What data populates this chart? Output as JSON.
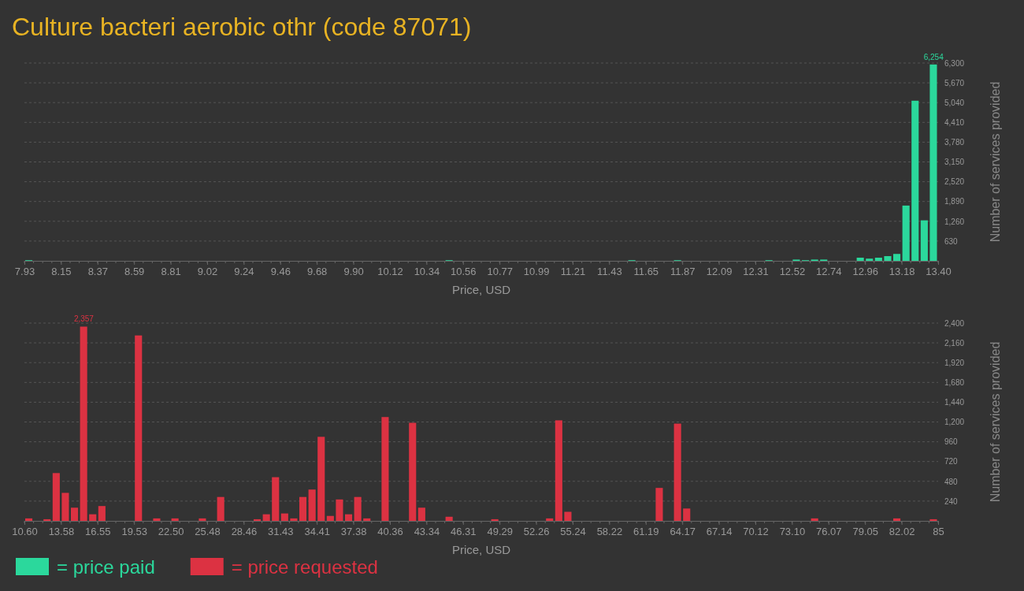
{
  "chart_data": [
    {
      "type": "histogram",
      "title": "Culture bacteri aerobic othr (code 87071)",
      "xlabel": "Price, USD",
      "ylabel": "Number of services provided",
      "bins": [
        7.93,
        7.9847,
        8.0394,
        8.0941,
        8.1488,
        8.2035,
        8.2582,
        8.3129,
        8.3676,
        8.4223,
        8.477,
        8.5317,
        8.5864,
        8.6411,
        8.6958,
        8.7505,
        8.8052,
        8.8599,
        8.9146,
        8.9693,
        9.024,
        9.0787,
        9.1334,
        9.1881,
        9.2428,
        9.2975,
        9.3522,
        9.4069,
        9.4616,
        9.5163,
        9.571,
        9.6257,
        9.6804,
        9.7351,
        9.7898,
        9.8445,
        9.8992,
        9.9539,
        10.0086,
        10.0633,
        10.118,
        10.1727,
        10.2274,
        10.2821,
        10.3368,
        10.3915,
        10.4462,
        10.5009,
        10.5556,
        10.6103,
        10.665,
        10.7197,
        10.7744,
        10.8291,
        10.8838,
        10.9385,
        10.9932,
        11.0479,
        11.1026,
        11.1573,
        11.212,
        11.2667,
        11.3214,
        11.3761,
        11.4308,
        11.4855,
        11.5402,
        11.5949,
        11.6496,
        11.7043,
        11.759,
        11.8137,
        11.8684,
        11.9231,
        11.9778,
        12.0325,
        12.0872,
        12.1419,
        12.1966,
        12.2513,
        12.306,
        12.3607,
        12.4154,
        12.4701,
        12.5248,
        12.5795,
        12.6342,
        12.6889,
        12.7436,
        12.7983,
        12.853,
        12.9077,
        12.9624,
        13.0171,
        13.0718,
        13.1265,
        13.1812,
        13.2359,
        13.2906,
        13.3453,
        13.4
      ],
      "series": [
        {
          "name": "= price paid",
          "color": "#2bd89c",
          "values": [
            20,
            0,
            0,
            0,
            0,
            0,
            0,
            0,
            0,
            0,
            0,
            0,
            0,
            0,
            0,
            0,
            0,
            0,
            0,
            0,
            0,
            0,
            0,
            0,
            0,
            0,
            0,
            0,
            0,
            0,
            0,
            0,
            0,
            0,
            0,
            0,
            0,
            0,
            0,
            0,
            0,
            0,
            0,
            0,
            0,
            0,
            20,
            0,
            0,
            0,
            0,
            0,
            0,
            0,
            0,
            0,
            0,
            0,
            0,
            0,
            0,
            0,
            0,
            0,
            0,
            0,
            20,
            0,
            0,
            0,
            0,
            20,
            0,
            0,
            0,
            0,
            0,
            0,
            0,
            0,
            0,
            20,
            0,
            0,
            40,
            20,
            40,
            40,
            0,
            0,
            0,
            100,
            70,
            100,
            150,
            220,
            1760,
            5100,
            1290,
            6254
          ],
          "value_labels": [
            null,
            null,
            null,
            null,
            null,
            null,
            null,
            null,
            null,
            null,
            null,
            null,
            null,
            null,
            null,
            null,
            null,
            null,
            null,
            null,
            null,
            null,
            null,
            null,
            null,
            null,
            null,
            null,
            null,
            null,
            null,
            null,
            null,
            null,
            null,
            null,
            null,
            null,
            null,
            null,
            null,
            null,
            null,
            null,
            null,
            null,
            null,
            null,
            null,
            null,
            null,
            null,
            null,
            null,
            null,
            null,
            null,
            null,
            null,
            null,
            null,
            null,
            null,
            null,
            null,
            null,
            null,
            null,
            null,
            null,
            null,
            null,
            null,
            null,
            null,
            null,
            null,
            null,
            null,
            null,
            null,
            null,
            null,
            null,
            null,
            null,
            null,
            null,
            null,
            null,
            null,
            null,
            null,
            null,
            null,
            null,
            null,
            null,
            null,
            "6,254"
          ]
        }
      ],
      "xlim": [
        7.93,
        13.4
      ],
      "xticks": [
        {
          "value": 7.93,
          "label": "7.93"
        },
        {
          "value": 8.1488,
          "label": "8.15"
        },
        {
          "value": 8.3676,
          "label": "8.37"
        },
        {
          "value": 8.5864,
          "label": "8.59"
        },
        {
          "value": 8.8052,
          "label": "8.81"
        },
        {
          "value": 9.024,
          "label": "9.02"
        },
        {
          "value": 9.2428,
          "label": "9.24"
        },
        {
          "value": 9.4616,
          "label": "9.46"
        },
        {
          "value": 9.6804,
          "label": "9.68"
        },
        {
          "value": 9.8992,
          "label": "9.90"
        },
        {
          "value": 10.118,
          "label": "10.12"
        },
        {
          "value": 10.3368,
          "label": "10.34"
        },
        {
          "value": 10.5556,
          "label": "10.56"
        },
        {
          "value": 10.7744,
          "label": "10.77"
        },
        {
          "value": 10.9932,
          "label": "10.99"
        },
        {
          "value": 11.212,
          "label": "11.21"
        },
        {
          "value": 11.4308,
          "label": "11.43"
        },
        {
          "value": 11.6496,
          "label": "11.65"
        },
        {
          "value": 11.8684,
          "label": "11.87"
        },
        {
          "value": 12.0872,
          "label": "12.09"
        },
        {
          "value": 12.306,
          "label": "12.31"
        },
        {
          "value": 12.5248,
          "label": "12.52"
        },
        {
          "value": 12.7436,
          "label": "12.74"
        },
        {
          "value": 12.9624,
          "label": "12.96"
        },
        {
          "value": 13.1812,
          "label": "13.18"
        },
        {
          "value": 13.4,
          "label": "13.40"
        }
      ],
      "ylim": [
        0,
        6300
      ],
      "yticks": [
        {
          "value": 630,
          "label": "630"
        },
        {
          "value": 1260,
          "label": "1,260"
        },
        {
          "value": 1890,
          "label": "1,890"
        },
        {
          "value": 2520,
          "label": "2,520"
        },
        {
          "value": 3150,
          "label": "3,150"
        },
        {
          "value": 3780,
          "label": "3,780"
        },
        {
          "value": 4410,
          "label": "4,410"
        },
        {
          "value": 5040,
          "label": "5,040"
        },
        {
          "value": 5670,
          "label": "5,670"
        },
        {
          "value": 6300,
          "label": "6,300"
        }
      ],
      "grid": "y",
      "legend": "bottom left"
    },
    {
      "type": "histogram",
      "xlabel": "Price, USD",
      "ylabel": "Number of services provided",
      "bins": [
        10.6,
        11.344,
        12.088,
        12.832,
        13.576,
        14.32,
        15.064,
        15.808,
        16.552,
        17.296,
        18.04,
        18.784,
        19.528,
        20.272,
        21.016,
        21.76,
        22.504,
        23.248,
        23.992,
        24.736,
        25.48,
        26.224,
        26.968,
        27.712,
        28.456,
        29.2,
        29.944,
        30.688,
        31.432,
        32.176,
        32.92,
        33.664,
        34.408,
        35.152,
        35.896,
        36.64,
        37.384,
        38.128,
        38.872,
        39.616,
        40.36,
        41.104,
        41.848,
        42.592,
        43.336,
        44.08,
        44.824,
        45.568,
        46.312,
        47.056,
        47.8,
        48.544,
        49.288,
        50.032,
        50.776,
        51.52,
        52.264,
        53.008,
        53.752,
        54.496,
        55.24,
        55.984,
        56.728,
        57.472,
        58.216,
        58.96,
        59.704,
        60.448,
        61.192,
        61.936,
        62.68,
        63.424,
        64.168,
        64.912,
        65.656,
        66.4,
        67.144,
        67.888,
        68.632,
        69.376,
        70.12,
        70.864,
        71.608,
        72.352,
        73.096,
        73.84,
        74.584,
        75.328,
        76.072,
        76.816,
        77.56,
        78.304,
        79.048,
        79.792,
        80.536,
        81.28,
        82.024,
        82.768,
        83.512,
        84.256,
        85
      ],
      "series": [
        {
          "name": "= price requested",
          "color": "#dc3242",
          "values": [
            30,
            0,
            20,
            580,
            340,
            160,
            2357,
            80,
            180,
            0,
            0,
            0,
            2250,
            0,
            30,
            0,
            30,
            0,
            0,
            30,
            0,
            290,
            0,
            0,
            0,
            20,
            80,
            530,
            90,
            30,
            290,
            380,
            1020,
            60,
            260,
            80,
            290,
            30,
            0,
            1260,
            0,
            0,
            1190,
            160,
            0,
            0,
            50,
            0,
            0,
            0,
            0,
            20,
            0,
            0,
            0,
            0,
            0,
            30,
            1220,
            110,
            0,
            0,
            0,
            0,
            0,
            0,
            0,
            0,
            0,
            400,
            0,
            1180,
            150,
            0,
            0,
            0,
            0,
            0,
            0,
            0,
            0,
            0,
            0,
            0,
            0,
            0,
            30,
            0,
            0,
            0,
            0,
            0,
            0,
            0,
            0,
            30,
            0,
            0,
            0,
            20
          ],
          "value_labels": [
            null,
            null,
            null,
            null,
            null,
            null,
            "2,357",
            null,
            null,
            null,
            null,
            null,
            null,
            null,
            null,
            null,
            null,
            null,
            null,
            null,
            null,
            null,
            null,
            null,
            null,
            null,
            null,
            null,
            null,
            null,
            null,
            null,
            null,
            null,
            null,
            null,
            null,
            null,
            null,
            null,
            null,
            null,
            null,
            null,
            null,
            null,
            null,
            null,
            null,
            null,
            null,
            null,
            null,
            null,
            null,
            null,
            null,
            null,
            null,
            null,
            null,
            null,
            null,
            null,
            null,
            null,
            null,
            null,
            null,
            null,
            null,
            null,
            null,
            null,
            null,
            null,
            null,
            null,
            null,
            null,
            null,
            null,
            null,
            null,
            null,
            null,
            null,
            null,
            null,
            null,
            null,
            null,
            null,
            null,
            null,
            null,
            null,
            null,
            null,
            null
          ]
        }
      ],
      "xlim": [
        10.6,
        85
      ],
      "xticks": [
        {
          "value": 10.6,
          "label": "10.60"
        },
        {
          "value": 13.576,
          "label": "13.58"
        },
        {
          "value": 16.552,
          "label": "16.55"
        },
        {
          "value": 19.528,
          "label": "19.53"
        },
        {
          "value": 22.504,
          "label": "22.50"
        },
        {
          "value": 25.48,
          "label": "25.48"
        },
        {
          "value": 28.456,
          "label": "28.46"
        },
        {
          "value": 31.432,
          "label": "31.43"
        },
        {
          "value": 34.408,
          "label": "34.41"
        },
        {
          "value": 37.384,
          "label": "37.38"
        },
        {
          "value": 40.36,
          "label": "40.36"
        },
        {
          "value": 43.336,
          "label": "43.34"
        },
        {
          "value": 46.312,
          "label": "46.31"
        },
        {
          "value": 49.288,
          "label": "49.29"
        },
        {
          "value": 52.264,
          "label": "52.26"
        },
        {
          "value": 55.24,
          "label": "55.24"
        },
        {
          "value": 58.216,
          "label": "58.22"
        },
        {
          "value": 61.192,
          "label": "61.19"
        },
        {
          "value": 64.168,
          "label": "64.17"
        },
        {
          "value": 67.144,
          "label": "67.14"
        },
        {
          "value": 70.12,
          "label": "70.12"
        },
        {
          "value": 73.096,
          "label": "73.10"
        },
        {
          "value": 76.072,
          "label": "76.07"
        },
        {
          "value": 79.048,
          "label": "79.05"
        },
        {
          "value": 82.024,
          "label": "82.02"
        },
        {
          "value": 85,
          "label": "85"
        }
      ],
      "ylim": [
        0,
        2400
      ],
      "yticks": [
        {
          "value": 240,
          "label": "240"
        },
        {
          "value": 480,
          "label": "480"
        },
        {
          "value": 720,
          "label": "720"
        },
        {
          "value": 960,
          "label": "960"
        },
        {
          "value": 1200,
          "label": "1,200"
        },
        {
          "value": 1440,
          "label": "1,440"
        },
        {
          "value": 1680,
          "label": "1,680"
        },
        {
          "value": 1920,
          "label": "1,920"
        },
        {
          "value": 2160,
          "label": "2,160"
        },
        {
          "value": 2400,
          "label": "2,400"
        }
      ],
      "grid": "y",
      "legend": "bottom left"
    }
  ]
}
